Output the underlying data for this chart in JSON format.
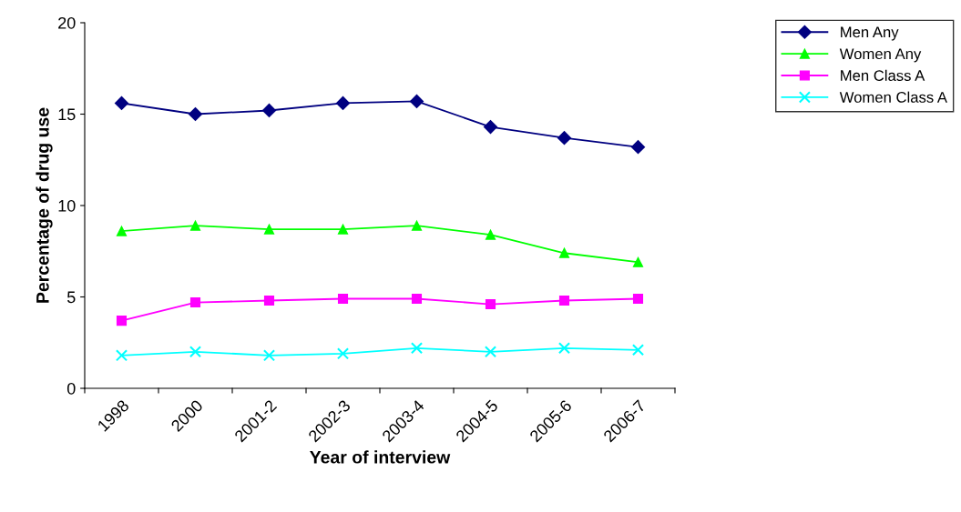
{
  "chart_data": {
    "type": "line",
    "xlabel": "Year of interview",
    "ylabel": "Percentage of drug use",
    "categories": [
      "1998",
      "2000",
      "2001-2",
      "2002-3",
      "2003-4",
      "2004-5",
      "2005-6",
      "2006-7"
    ],
    "series": [
      {
        "name": "Men Any",
        "color": "#000080",
        "marker": "diamond",
        "values": [
          15.6,
          15.0,
          15.2,
          15.6,
          15.7,
          14.3,
          13.7,
          13.2
        ]
      },
      {
        "name": "Women Any",
        "color": "#00ff00",
        "marker": "triangle",
        "values": [
          8.6,
          8.9,
          8.7,
          8.7,
          8.9,
          8.4,
          7.4,
          6.9
        ]
      },
      {
        "name": "Men Class A",
        "color": "#ff00ff",
        "marker": "square",
        "values": [
          3.7,
          4.7,
          4.8,
          4.9,
          4.9,
          4.6,
          4.8,
          4.9
        ]
      },
      {
        "name": "Women Class A",
        "color": "#00ffff",
        "marker": "cross",
        "values": [
          1.8,
          2.0,
          1.8,
          1.9,
          2.2,
          2.0,
          2.2,
          2.1
        ]
      }
    ],
    "ylim": [
      0,
      20
    ],
    "yticks": [
      0,
      5,
      10,
      15,
      20
    ],
    "grid": false,
    "legend": "top right",
    "line_style": "solid"
  }
}
